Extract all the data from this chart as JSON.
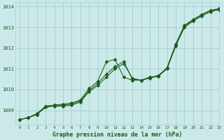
{
  "title": "Graphe pression niveau de la mer (hPa)",
  "bg_color": "#cce9e9",
  "grid_color": "#aacfcf",
  "line_color": "#1a5c1a",
  "xlim": [
    -0.5,
    23
  ],
  "ylim": [
    1008.3,
    1014.2
  ],
  "yticks": [
    1009,
    1010,
    1011,
    1012,
    1013,
    1014
  ],
  "xticks": [
    0,
    1,
    2,
    3,
    4,
    5,
    6,
    7,
    8,
    9,
    10,
    11,
    12,
    13,
    14,
    15,
    16,
    17,
    18,
    19,
    20,
    21,
    22,
    23
  ],
  "line1_x": [
    0,
    1,
    2,
    3,
    4,
    5,
    6,
    7,
    8,
    9,
    10,
    11,
    12,
    13,
    14,
    15,
    16,
    17,
    18,
    19,
    20,
    21,
    22,
    23
  ],
  "line1_y": [
    1008.55,
    1008.65,
    1008.85,
    1009.2,
    1009.25,
    1009.25,
    1009.3,
    1009.45,
    1009.95,
    1010.3,
    1010.75,
    1011.1,
    1011.35,
    1010.5,
    1010.45,
    1010.55,
    1010.65,
    1011.0,
    1012.1,
    1013.0,
    1013.3,
    1013.55,
    1013.75,
    1013.85
  ],
  "line2_x": [
    0,
    1,
    2,
    3,
    4,
    5,
    6,
    7,
    8,
    9,
    10,
    11,
    12,
    13,
    14,
    15,
    16,
    17,
    18,
    19,
    20,
    21,
    22,
    23
  ],
  "line2_y": [
    1008.55,
    1008.65,
    1008.8,
    1009.15,
    1009.2,
    1009.2,
    1009.25,
    1009.4,
    1009.9,
    1010.2,
    1010.6,
    1011.0,
    1011.25,
    1010.55,
    1010.45,
    1010.58,
    1010.68,
    1011.05,
    1012.15,
    1013.05,
    1013.35,
    1013.6,
    1013.8,
    1013.88
  ],
  "line3_x": [
    0,
    1,
    2,
    3,
    4,
    5,
    6,
    7,
    8,
    9,
    10,
    11,
    12,
    13,
    14,
    15,
    16,
    17,
    18,
    19,
    20,
    21,
    22,
    23
  ],
  "line3_y": [
    1008.55,
    1008.65,
    1008.8,
    1009.2,
    1009.25,
    1009.3,
    1009.35,
    1009.5,
    1010.05,
    1010.4,
    1011.35,
    1011.45,
    1010.6,
    1010.45,
    1010.45,
    1010.6,
    1010.65,
    1011.05,
    1012.2,
    1013.1,
    1013.38,
    1013.62,
    1013.82,
    1013.9
  ],
  "marker_style": "D",
  "marker_size": 2.5
}
